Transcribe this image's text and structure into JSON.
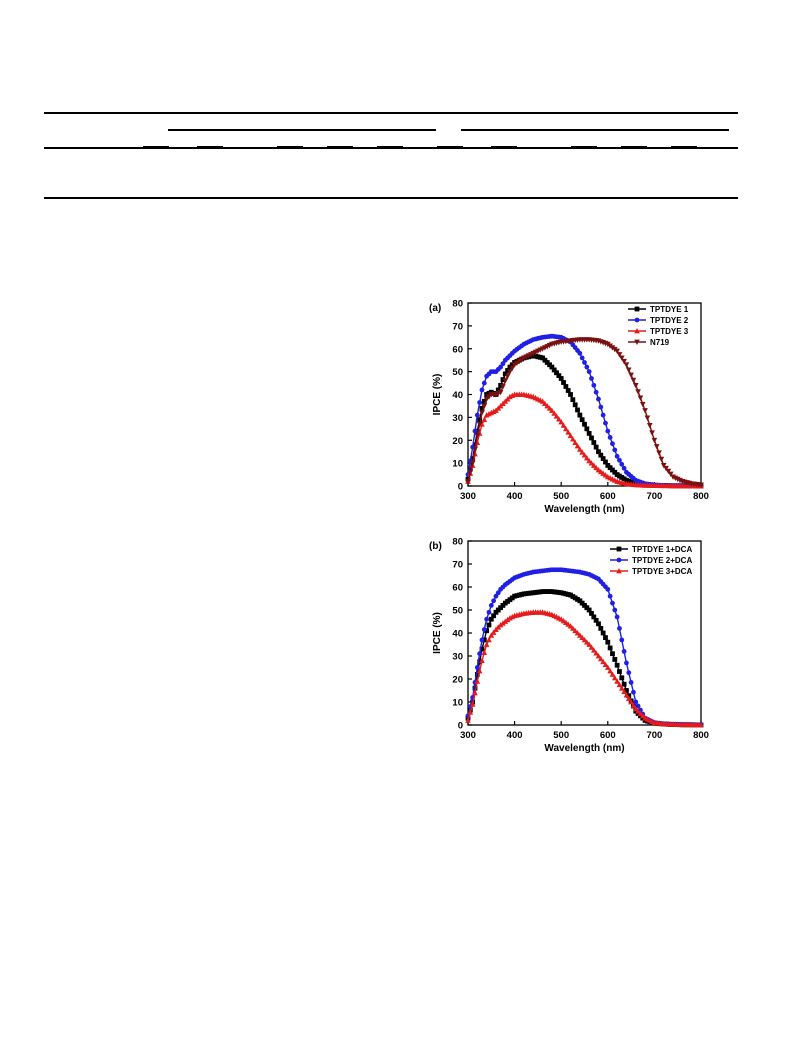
{
  "chart_data": [
    {
      "type": "line",
      "panel_label": "(a)",
      "xlabel": "Wavelength (nm)",
      "ylabel": "IPCE (%)",
      "xlim": [
        300,
        800
      ],
      "ylim": [
        0,
        80
      ],
      "xticks": [
        300,
        400,
        500,
        600,
        700,
        800
      ],
      "yticks": [
        0,
        10,
        20,
        30,
        40,
        50,
        60,
        70,
        80
      ],
      "legend_position": "top-right",
      "x": [
        300,
        310,
        320,
        330,
        340,
        350,
        360,
        370,
        380,
        390,
        400,
        420,
        440,
        460,
        480,
        500,
        520,
        540,
        560,
        580,
        600,
        620,
        640,
        660,
        680,
        700,
        720,
        740,
        760,
        780,
        800
      ],
      "series": [
        {
          "name": "TPTDYE 1",
          "color": "#000000",
          "marker": "square",
          "values": [
            3,
            12,
            24,
            34,
            40,
            41,
            40,
            44,
            49,
            52,
            54,
            56,
            57,
            56,
            52,
            47,
            40,
            31,
            23,
            15,
            9,
            5,
            2.5,
            1,
            0.5,
            0.3,
            0.2,
            0.1,
            0.1,
            0.1,
            0
          ]
        },
        {
          "name": "TPTDYE 2",
          "color": "#1f1fe6",
          "marker": "circle",
          "values": [
            5,
            17,
            31,
            42,
            48,
            50,
            50,
            52,
            55,
            57,
            59,
            62,
            64,
            65,
            65.5,
            65,
            63,
            58,
            50,
            38,
            24,
            13,
            6,
            2.5,
            1,
            0.5,
            0.2,
            0.1,
            0.1,
            0,
            0
          ]
        },
        {
          "name": "TPTDYE 3",
          "color": "#e61b1b",
          "marker": "triangle-up",
          "values": [
            2,
            9,
            19,
            27,
            31,
            32,
            33,
            35,
            37,
            39,
            40,
            40,
            39,
            37,
            33,
            28,
            22,
            16,
            11,
            7,
            4,
            2,
            1,
            0.5,
            0.3,
            0.2,
            0.1,
            0.1,
            0,
            0,
            0
          ]
        },
        {
          "name": "N719",
          "color": "#7a1010",
          "marker": "triangle-down",
          "values": [
            2,
            10,
            22,
            32,
            38,
            40,
            40,
            41,
            46,
            50,
            53,
            56,
            58,
            60,
            62,
            63,
            63.5,
            64,
            64,
            63.5,
            62,
            59,
            53,
            44,
            33,
            20,
            9,
            4,
            2,
            1,
            0.5
          ]
        }
      ]
    },
    {
      "type": "line",
      "panel_label": "(b)",
      "xlabel": "Wavelength (nm)",
      "ylabel": "IPCE (%)",
      "xlim": [
        300,
        800
      ],
      "ylim": [
        0,
        80
      ],
      "xticks": [
        300,
        400,
        500,
        600,
        700,
        800
      ],
      "yticks": [
        0,
        10,
        20,
        30,
        40,
        50,
        60,
        70,
        80
      ],
      "legend_position": "top-right",
      "x": [
        300,
        310,
        320,
        330,
        340,
        350,
        360,
        370,
        380,
        390,
        400,
        420,
        440,
        460,
        480,
        500,
        520,
        540,
        560,
        580,
        600,
        620,
        640,
        660,
        680,
        700,
        720,
        740,
        760,
        780,
        800
      ],
      "series": [
        {
          "name": "TPTDYE 1+DCA",
          "color": "#000000",
          "marker": "square",
          "values": [
            3,
            10,
            22,
            33,
            41,
            46,
            49,
            51,
            53,
            54.5,
            56,
            57,
            57.5,
            58,
            58,
            57.5,
            56.5,
            54,
            50,
            44,
            36,
            26,
            15,
            6,
            2,
            0.8,
            0.4,
            0.2,
            0.1,
            0.1,
            0
          ]
        },
        {
          "name": "TPTDYE 2+DCA",
          "color": "#1f1fe6",
          "marker": "circle",
          "values": [
            4,
            12,
            25,
            37,
            46,
            52,
            56,
            59,
            61,
            62.5,
            64,
            65.5,
            66.5,
            67,
            67.5,
            67.5,
            67,
            66.5,
            65.5,
            63.5,
            59,
            47,
            27,
            10,
            3,
            1,
            0.5,
            0.3,
            0.2,
            0.1,
            0
          ]
        },
        {
          "name": "TPTDYE 3+DCA",
          "color": "#e61b1b",
          "marker": "triangle-up",
          "values": [
            2,
            9,
            19,
            28,
            35,
            39,
            41.5,
            43.5,
            45,
            46.5,
            47.5,
            48.5,
            49,
            49,
            48,
            46,
            43,
            39,
            35,
            30,
            25,
            19,
            13,
            7,
            3,
            1,
            0.5,
            0.3,
            0.2,
            0.1,
            0
          ]
        }
      ]
    }
  ]
}
